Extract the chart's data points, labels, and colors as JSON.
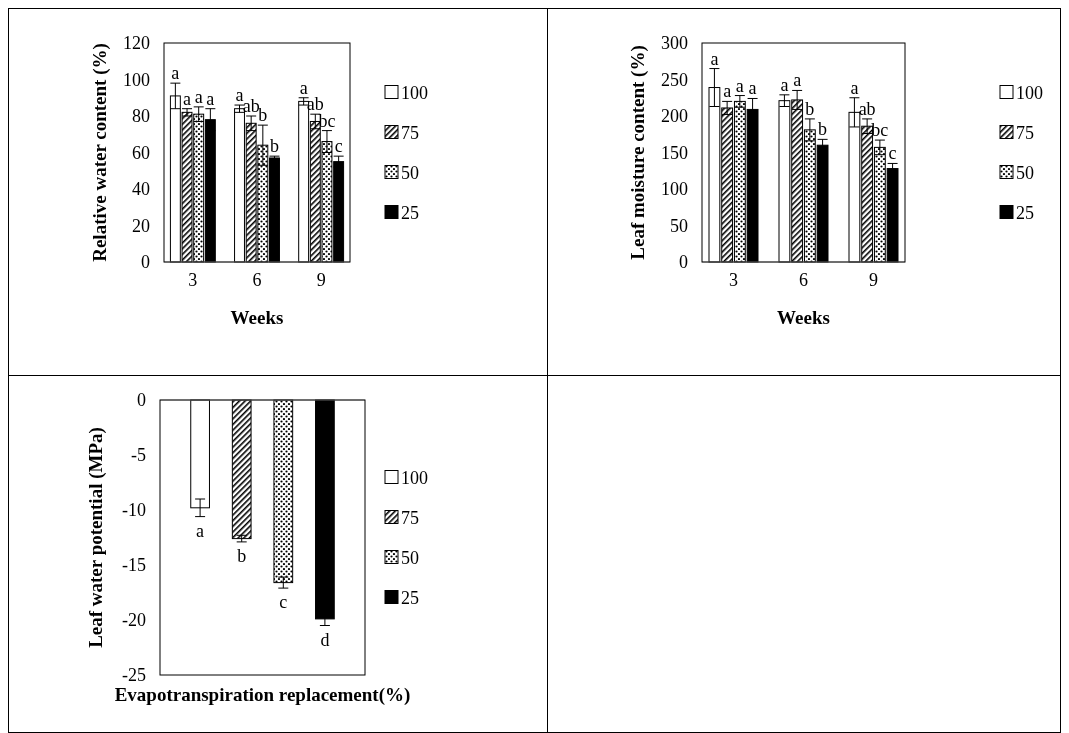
{
  "chart_data": [
    {
      "type": "bar",
      "xlabel": "Weeks",
      "ylabel": "Relative water content (%)",
      "categories": [
        "3",
        "6",
        "9"
      ],
      "ylim": [
        0,
        120
      ],
      "yticks": [
        0,
        20,
        40,
        60,
        80,
        100,
        120
      ],
      "legend": "right",
      "series": [
        {
          "name": "100",
          "color": "#ffffff",
          "values": [
            91,
            84,
            88
          ],
          "errors": [
            7,
            2,
            2
          ],
          "value_labels": [
            "a",
            "a",
            "a"
          ]
        },
        {
          "name": "75",
          "color": "#000000",
          "values": [
            82,
            76,
            77
          ],
          "errors": [
            2,
            4,
            4
          ],
          "value_labels": [
            "a",
            "ab",
            "ab"
          ]
        },
        {
          "name": "50",
          "color": "#000000",
          "values": [
            81,
            64,
            66
          ],
          "errors": [
            4,
            11,
            6
          ],
          "value_labels": [
            "a",
            "b",
            "bc"
          ]
        },
        {
          "name": "25",
          "color": "#000000",
          "values": [
            78,
            57,
            55
          ],
          "errors": [
            6,
            1,
            3
          ],
          "value_labels": [
            "a",
            "b",
            "c"
          ]
        }
      ]
    },
    {
      "type": "bar",
      "xlabel": "Weeks",
      "ylabel": "Leaf moisture content (%)",
      "categories": [
        "3",
        "6",
        "9"
      ],
      "ylim": [
        0,
        300
      ],
      "yticks": [
        0,
        50,
        100,
        150,
        200,
        250,
        300
      ],
      "legend": "right",
      "series": [
        {
          "name": "100",
          "color": "#ffffff",
          "values": [
            239,
            221,
            205
          ],
          "errors": [
            26,
            8,
            20
          ],
          "value_labels": [
            "a",
            "a",
            "a"
          ]
        },
        {
          "name": "75",
          "color": "#000000",
          "values": [
            211,
            222,
            186
          ],
          "errors": [
            9,
            13,
            10
          ],
          "value_labels": [
            "a",
            "a",
            "ab"
          ]
        },
        {
          "name": "50",
          "color": "#000000",
          "values": [
            220,
            181,
            157
          ],
          "errors": [
            8,
            15,
            10
          ],
          "value_labels": [
            "a",
            "b",
            "bc"
          ]
        },
        {
          "name": "25",
          "color": "#000000",
          "values": [
            209,
            160,
            128
          ],
          "errors": [
            15,
            8,
            7
          ],
          "value_labels": [
            "a",
            "b",
            "c"
          ]
        }
      ]
    },
    {
      "type": "bar",
      "xlabel": "Evapotranspiration replacement(%)",
      "ylabel": "Leaf water potential (MPa)",
      "categories": [
        null
      ],
      "ylim": [
        -25,
        0
      ],
      "yticks": [
        -25,
        -20,
        -15,
        -10,
        -5,
        0
      ],
      "legend": "right",
      "series": [
        {
          "name": "100",
          "color": "#ffffff",
          "values": [
            -9.8
          ],
          "errors": [
            0.8
          ],
          "value_labels": [
            "a"
          ]
        },
        {
          "name": "75",
          "color": "#000000",
          "values": [
            -12.6
          ],
          "errors": [
            0.3
          ],
          "value_labels": [
            "b"
          ]
        },
        {
          "name": "50",
          "color": "#000000",
          "values": [
            -16.6
          ],
          "errors": [
            0.5
          ],
          "value_labels": [
            "c"
          ]
        },
        {
          "name": "25",
          "color": "#000000",
          "values": [
            -19.9
          ],
          "errors": [
            0.6
          ],
          "value_labels": [
            "d"
          ]
        }
      ]
    }
  ]
}
